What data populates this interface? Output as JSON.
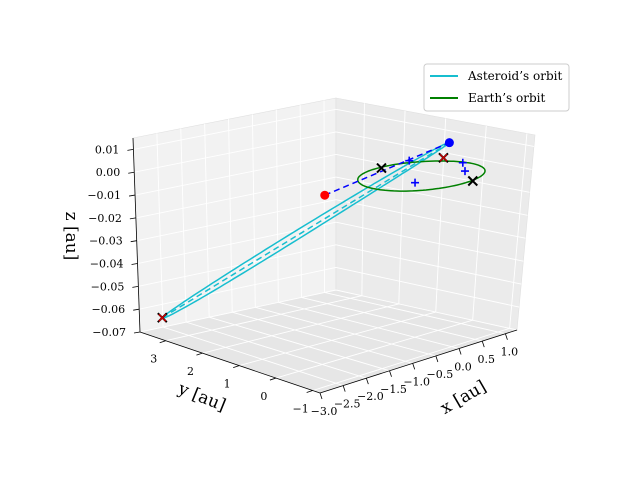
{
  "chart_data": {
    "type": "scatter",
    "projection": "3d",
    "title": "",
    "axes": {
      "x": {
        "label": "x [au]",
        "range": [
          -3.0,
          1.25
        ],
        "ticks": [
          "−3.0",
          "−2.5",
          "−2.0",
          "−1.5",
          "−1.0",
          "−0.5",
          "0.0",
          "0.5",
          "1.0"
        ]
      },
      "y": {
        "label": "y [au]",
        "range": [
          -1.2,
          3.7
        ],
        "ticks": [
          "−1",
          "0",
          "1",
          "2",
          "3"
        ]
      },
      "z": {
        "label": "z [au]",
        "range": [
          -0.07,
          0.015
        ],
        "ticks": [
          "−0.07",
          "−0.06",
          "−0.05",
          "−0.04",
          "−0.03",
          "−0.02",
          "−0.01",
          "0.00",
          "0.01"
        ]
      }
    },
    "grid": true,
    "legend": {
      "placement": "top-right",
      "entries": [
        {
          "name": "Asteroid’s orbit",
          "color": "#17becf"
        },
        {
          "name": "Earth’s orbit",
          "color": "#008000"
        }
      ]
    },
    "series": [
      {
        "name": "Asteroid’s orbit",
        "kind": "ellipse-orbit",
        "color": "#17becf",
        "perihelion": [
          0.9,
          0.45,
          0.008
        ],
        "aphelion": [
          -2.9,
          3.2,
          -0.0615
        ],
        "minor_semi_axis": [
          0.55,
          0.45,
          0.0
        ]
      },
      {
        "name": "Earth’s orbit",
        "kind": "circle-orbit",
        "color": "#008000",
        "center": [
          0.0,
          0.0,
          0.0
        ],
        "radius": 1.0
      },
      {
        "name": "",
        "kind": "dashed-line",
        "color": "#17becf",
        "points": [
          [
            0.9,
            0.45,
            0.008
          ],
          [
            -2.9,
            3.2,
            -0.0615
          ]
        ]
      },
      {
        "name": "",
        "kind": "dashed-line",
        "color": "#0000ff",
        "points": [
          [
            -1.0,
            1.2,
            -0.008
          ],
          [
            0.9,
            0.45,
            0.008
          ]
        ]
      }
    ],
    "markers": {
      "red_dots": [
        [
          -1.0,
          1.2,
          -0.008
        ]
      ],
      "blue_dots": [
        [
          0.9,
          0.45,
          0.008
        ]
      ],
      "black_x": [
        [
          1.0,
          0.7,
          0.0
        ],
        [
          -0.05,
          0.95,
          0.0
        ],
        [
          0.25,
          -1.0,
          0.0
        ],
        [
          -2.9,
          3.2,
          -0.0615
        ]
      ],
      "red_x": [
        [
          1.0,
          0.7,
          0.0
        ],
        [
          -2.9,
          3.2,
          -0.0615
        ]
      ],
      "blue_plus": [
        [
          0.55,
          1.0,
          0.0
        ],
        [
          0.95,
          0.15,
          0.0
        ],
        [
          0.6,
          -0.35,
          0.0
        ],
        [
          -0.35,
          -0.3,
          0.0
        ]
      ]
    }
  }
}
